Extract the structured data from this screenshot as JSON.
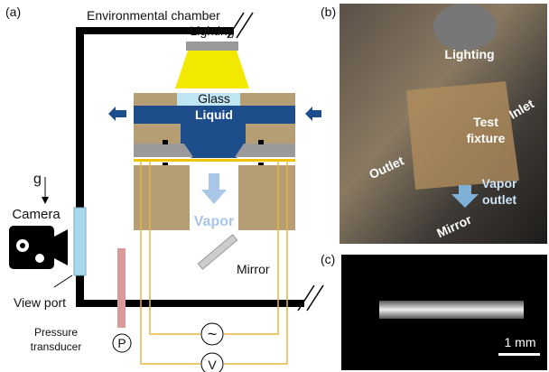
{
  "panel_a": {
    "label": "(a)",
    "chamber": "Environmental chamber",
    "lighting": "Lighting",
    "glass": "Glass",
    "liquid": "Liquid",
    "vapor": "Vapor",
    "mirror": "Mirror",
    "gravity": "g",
    "camera": "Camera",
    "view_port": "View port",
    "pressure_transducer": [
      "Pressure",
      "transducer"
    ],
    "pressure_gauge": "P",
    "ac_source": "~",
    "voltmeter": "V"
  },
  "panel_b": {
    "label": "(b)",
    "lighting": "Lighting",
    "test_fixture": [
      "Test",
      "fixture"
    ],
    "inlet": "Inlet",
    "outlet": "Outlet",
    "vapor_outlet": [
      "Vapor",
      "outlet"
    ],
    "mirror": "Mirror"
  },
  "panel_c": {
    "label": "(c)",
    "scale_bar": "1 mm"
  }
}
